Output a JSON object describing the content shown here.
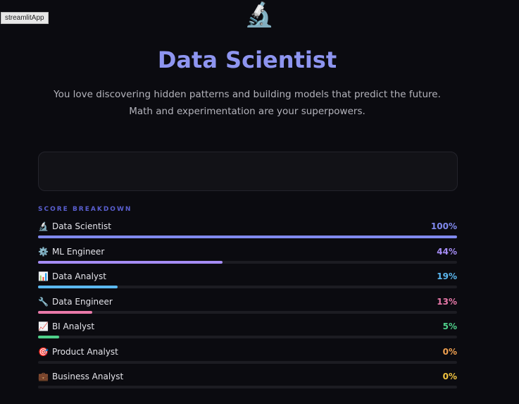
{
  "window": {
    "tag": "streamlitApp"
  },
  "hero": {
    "icon": "🔬",
    "title": "Data Scientist",
    "description_line1": "You love discovering hidden patterns and building models that predict the future.",
    "description_line2": "Math and experimentation are your superpowers."
  },
  "section_title": "SCORE BREAKDOWN",
  "scores": [
    {
      "icon": "🔬",
      "label": "Data Scientist",
      "percent_text": "100%",
      "percent": 100,
      "color": "#8089ee"
    },
    {
      "icon": "⚙️",
      "label": "ML Engineer",
      "percent_text": "44%",
      "percent": 44,
      "color": "#a58cf5"
    },
    {
      "icon": "📊",
      "label": "Data Analyst",
      "percent_text": "19%",
      "percent": 19,
      "color": "#5bb8f0"
    },
    {
      "icon": "🔧",
      "label": "Data Engineer",
      "percent_text": "13%",
      "percent": 13,
      "color": "#e879a9"
    },
    {
      "icon": "📈",
      "label": "BI Analyst",
      "percent_text": "5%",
      "percent": 5,
      "color": "#4fd08a"
    },
    {
      "icon": "🎯",
      "label": "Product Analyst",
      "percent_text": "0%",
      "percent": 0,
      "color": "#f0a050"
    },
    {
      "icon": "💼",
      "label": "Business Analyst",
      "percent_text": "0%",
      "percent": 0,
      "color": "#f2c440"
    }
  ]
}
